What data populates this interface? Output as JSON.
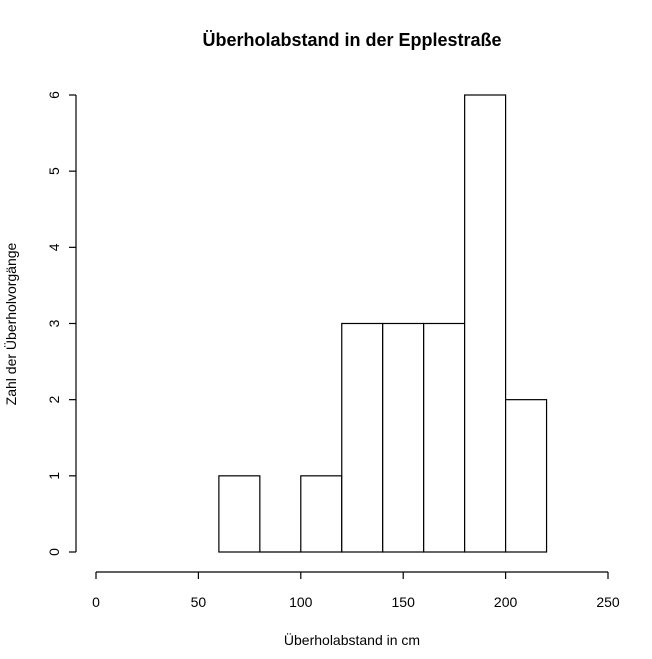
{
  "chart_data": {
    "type": "bar",
    "title": "Überholabstand in der Epplestraße",
    "xlabel": "Überholabstand in cm",
    "ylabel": "Zahl der Überholvorgänge",
    "bins": [
      {
        "from": 60,
        "to": 80,
        "count": 1
      },
      {
        "from": 80,
        "to": 100,
        "count": 0
      },
      {
        "from": 100,
        "to": 120,
        "count": 1
      },
      {
        "from": 120,
        "to": 140,
        "count": 3
      },
      {
        "from": 140,
        "to": 160,
        "count": 3
      },
      {
        "from": 160,
        "to": 180,
        "count": 3
      },
      {
        "from": 180,
        "to": 200,
        "count": 6
      },
      {
        "from": 200,
        "to": 220,
        "count": 2
      }
    ],
    "xlim": [
      0,
      250
    ],
    "ylim": [
      0,
      6
    ],
    "xticks": [
      "0",
      "50",
      "100",
      "150",
      "200",
      "250"
    ],
    "yticks": [
      "0",
      "1",
      "2",
      "3",
      "4",
      "5",
      "6"
    ],
    "grid": false
  }
}
